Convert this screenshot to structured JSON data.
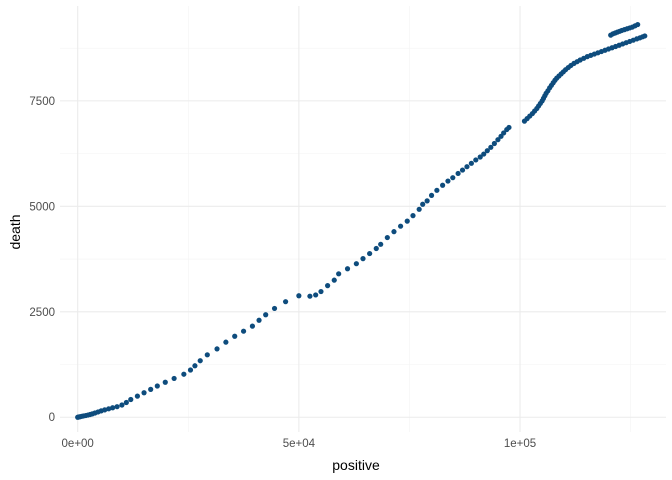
{
  "chart_data": {
    "type": "scatter",
    "title": "",
    "xlabel": "positive",
    "ylabel": "death",
    "xlim": [
      -4000,
      133000
    ],
    "ylim": [
      -350,
      9750
    ],
    "xticks": [
      0,
      50000,
      100000
    ],
    "xtick_labels": [
      "0e+00",
      "5e+04",
      "1e+05"
    ],
    "yticks": [
      0,
      2500,
      5000,
      7500
    ],
    "ytick_labels": [
      "0",
      "2500",
      "5000",
      "7500"
    ],
    "grid": true,
    "legend": "none",
    "point_color": "#0e4c7d",
    "series": [
      {
        "points": [
          [
            0,
            0
          ],
          [
            200,
            5
          ],
          [
            500,
            12
          ],
          [
            900,
            22
          ],
          [
            1300,
            30
          ],
          [
            1800,
            40
          ],
          [
            2300,
            52
          ],
          [
            2800,
            65
          ],
          [
            3300,
            80
          ],
          [
            3900,
            100
          ],
          [
            4600,
            125
          ],
          [
            5300,
            150
          ],
          [
            6100,
            175
          ],
          [
            7000,
            200
          ],
          [
            7900,
            225
          ],
          [
            8900,
            250
          ],
          [
            10000,
            290
          ],
          [
            11000,
            350
          ],
          [
            12000,
            420
          ],
          [
            13500,
            500
          ],
          [
            15000,
            580
          ],
          [
            16500,
            660
          ],
          [
            18000,
            740
          ],
          [
            19800,
            830
          ],
          [
            21800,
            920
          ],
          [
            24000,
            1020
          ],
          [
            25500,
            1120
          ],
          [
            26500,
            1220
          ],
          [
            27700,
            1340
          ],
          [
            29300,
            1480
          ],
          [
            31500,
            1620
          ],
          [
            33500,
            1780
          ],
          [
            35500,
            1920
          ],
          [
            37500,
            2040
          ],
          [
            39500,
            2160
          ],
          [
            41000,
            2300
          ],
          [
            42500,
            2430
          ],
          [
            44500,
            2580
          ],
          [
            47000,
            2740
          ],
          [
            50000,
            2880
          ],
          [
            52500,
            2870
          ],
          [
            53800,
            2900
          ],
          [
            55000,
            2980
          ],
          [
            56500,
            3120
          ],
          [
            58000,
            3250
          ],
          [
            59000,
            3400
          ],
          [
            61000,
            3520
          ],
          [
            63000,
            3640
          ],
          [
            64500,
            3760
          ],
          [
            66000,
            3880
          ],
          [
            67500,
            4000
          ],
          [
            68500,
            4100
          ],
          [
            70000,
            4260
          ],
          [
            71500,
            4400
          ],
          [
            73000,
            4530
          ],
          [
            74500,
            4650
          ],
          [
            75800,
            4780
          ],
          [
            77200,
            4930
          ],
          [
            78000,
            5050
          ],
          [
            79000,
            5130
          ],
          [
            80000,
            5260
          ],
          [
            81200,
            5380
          ],
          [
            82500,
            5500
          ],
          [
            83700,
            5600
          ],
          [
            84800,
            5680
          ],
          [
            86000,
            5780
          ],
          [
            87000,
            5860
          ],
          [
            88000,
            5940
          ],
          [
            89000,
            6020
          ],
          [
            90000,
            6100
          ],
          [
            91000,
            6170
          ],
          [
            91800,
            6240
          ],
          [
            92600,
            6320
          ],
          [
            93400,
            6400
          ],
          [
            94200,
            6490
          ],
          [
            95000,
            6580
          ],
          [
            95700,
            6660
          ],
          [
            96300,
            6740
          ],
          [
            97000,
            6820
          ],
          [
            97500,
            6870
          ],
          [
            101000,
            7020
          ],
          [
            101600,
            7080
          ],
          [
            102200,
            7140
          ],
          [
            102800,
            7200
          ],
          [
            103300,
            7260
          ],
          [
            103800,
            7320
          ],
          [
            104200,
            7380
          ],
          [
            104600,
            7440
          ],
          [
            105000,
            7500
          ],
          [
            105300,
            7560
          ],
          [
            105600,
            7620
          ],
          [
            105900,
            7680
          ],
          [
            106300,
            7740
          ],
          [
            106700,
            7810
          ],
          [
            107100,
            7870
          ],
          [
            107500,
            7930
          ],
          [
            107900,
            7990
          ],
          [
            108300,
            8040
          ],
          [
            108800,
            8090
          ],
          [
            109300,
            8140
          ],
          [
            109800,
            8190
          ],
          [
            110300,
            8240
          ],
          [
            110900,
            8290
          ],
          [
            111500,
            8340
          ],
          [
            112200,
            8390
          ],
          [
            112900,
            8430
          ],
          [
            113600,
            8470
          ],
          [
            114400,
            8510
          ],
          [
            115200,
            8550
          ],
          [
            116000,
            8580
          ],
          [
            116800,
            8610
          ],
          [
            117600,
            8640
          ],
          [
            118400,
            8670
          ],
          [
            119200,
            8700
          ],
          [
            120000,
            8730
          ],
          [
            120800,
            8760
          ],
          [
            121600,
            8790
          ],
          [
            122400,
            8820
          ],
          [
            123200,
            8850
          ],
          [
            124000,
            8880
          ],
          [
            124800,
            8910
          ],
          [
            125600,
            8940
          ],
          [
            126400,
            8970
          ],
          [
            127100,
            8995
          ],
          [
            127700,
            9020
          ],
          [
            128200,
            9040
          ],
          [
            120500,
            9060
          ],
          [
            121000,
            9090
          ],
          [
            121500,
            9110
          ],
          [
            122000,
            9130
          ],
          [
            122500,
            9150
          ],
          [
            123000,
            9170
          ],
          [
            123600,
            9190
          ],
          [
            124200,
            9210
          ],
          [
            124800,
            9230
          ],
          [
            125400,
            9250
          ],
          [
            126000,
            9280
          ],
          [
            126600,
            9310
          ]
        ]
      }
    ]
  }
}
